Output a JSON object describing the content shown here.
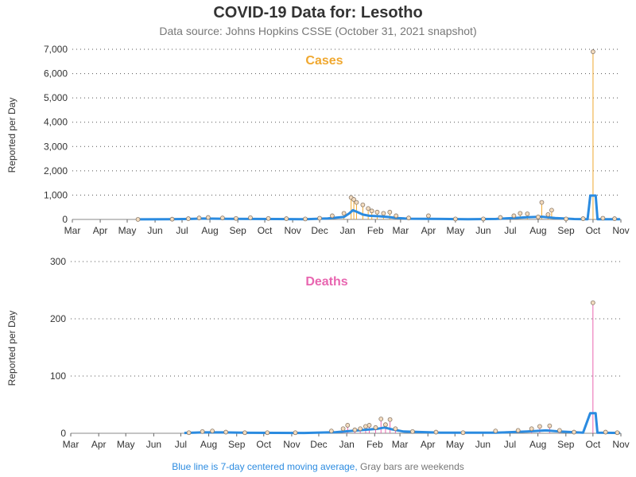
{
  "header": {
    "title": "COVID-19 Data for: Lesotho",
    "subtitle": "Data source: Johns Hopkins CSSE (October 31, 2021 snapshot)"
  },
  "footnote": {
    "moving_avg": "Blue line is 7-day centered moving average,",
    "weekends": "Gray bars are weekends"
  },
  "colors": {
    "moving_average": "#2b8be0",
    "cases": "#f0a830",
    "deaths": "#e866b0",
    "grid": "#555555"
  },
  "chart_data": [
    {
      "type": "line",
      "title": "Cases",
      "ylabel": "Reported per Day",
      "xlabel": "",
      "ylim": [
        0,
        7000
      ],
      "yticks": [
        "0",
        "1,000",
        "2,000",
        "3,000",
        "4,000",
        "5,000",
        "6,000",
        "7,000"
      ],
      "ytick_values": [
        0,
        1000,
        2000,
        3000,
        4000,
        5000,
        6000,
        7000
      ],
      "xlim": [
        "2020-03-01",
        "2021-11-01"
      ],
      "xticks": [
        "Mar",
        "Apr",
        "May",
        "Jun",
        "Jul",
        "Aug",
        "Sep",
        "Oct",
        "Nov",
        "Dec",
        "Jan",
        "Feb",
        "Mar",
        "Apr",
        "May",
        "Jun",
        "Jul",
        "Aug",
        "Sep",
        "Oct",
        "Nov"
      ],
      "grid": "horizontal dotted",
      "series": [
        {
          "name": "Reported per day",
          "color": "#f0a830",
          "points": [
            [
              "2020-05-13",
              1
            ],
            [
              "2020-06-20",
              10
            ],
            [
              "2020-07-08",
              30
            ],
            [
              "2020-07-20",
              60
            ],
            [
              "2020-07-30",
              80
            ],
            [
              "2020-08-15",
              60
            ],
            [
              "2020-08-30",
              40
            ],
            [
              "2020-09-15",
              70
            ],
            [
              "2020-10-05",
              40
            ],
            [
              "2020-10-25",
              30
            ],
            [
              "2020-11-15",
              20
            ],
            [
              "2020-12-01",
              50
            ],
            [
              "2020-12-15",
              150
            ],
            [
              "2020-12-28",
              250
            ],
            [
              "2021-01-05",
              900
            ],
            [
              "2021-01-08",
              820
            ],
            [
              "2021-01-11",
              700
            ],
            [
              "2021-01-18",
              600
            ],
            [
              "2021-01-24",
              450
            ],
            [
              "2021-01-28",
              350
            ],
            [
              "2021-02-03",
              300
            ],
            [
              "2021-02-10",
              250
            ],
            [
              "2021-02-17",
              300
            ],
            [
              "2021-02-24",
              150
            ],
            [
              "2021-03-10",
              60
            ],
            [
              "2021-04-01",
              150
            ],
            [
              "2021-05-01",
              20
            ],
            [
              "2021-06-01",
              20
            ],
            [
              "2021-06-20",
              80
            ],
            [
              "2021-07-05",
              150
            ],
            [
              "2021-07-12",
              250
            ],
            [
              "2021-07-20",
              230
            ],
            [
              "2021-08-01",
              100
            ],
            [
              "2021-08-05",
              700
            ],
            [
              "2021-08-12",
              200
            ],
            [
              "2021-08-16",
              380
            ],
            [
              "2021-09-01",
              20
            ],
            [
              "2021-09-20",
              30
            ],
            [
              "2021-10-01",
              6900
            ],
            [
              "2021-10-12",
              50
            ],
            [
              "2021-10-25",
              30
            ]
          ]
        },
        {
          "name": "7-day centered moving average",
          "color": "#2b8be0",
          "points": [
            [
              "2020-05-13",
              2
            ],
            [
              "2020-06-15",
              8
            ],
            [
              "2020-07-10",
              20
            ],
            [
              "2020-07-25",
              35
            ],
            [
              "2020-08-20",
              25
            ],
            [
              "2020-09-15",
              20
            ],
            [
              "2020-10-15",
              15
            ],
            [
              "2020-11-15",
              10
            ],
            [
              "2020-12-10",
              40
            ],
            [
              "2020-12-28",
              100
            ],
            [
              "2021-01-03",
              250
            ],
            [
              "2021-01-07",
              380
            ],
            [
              "2021-01-12",
              300
            ],
            [
              "2021-01-18",
              200
            ],
            [
              "2021-01-25",
              150
            ],
            [
              "2021-02-05",
              130
            ],
            [
              "2021-02-15",
              100
            ],
            [
              "2021-02-25",
              60
            ],
            [
              "2021-03-10",
              30
            ],
            [
              "2021-04-15",
              20
            ],
            [
              "2021-05-15",
              10
            ],
            [
              "2021-06-15",
              20
            ],
            [
              "2021-07-05",
              60
            ],
            [
              "2021-07-20",
              90
            ],
            [
              "2021-08-05",
              110
            ],
            [
              "2021-08-20",
              60
            ],
            [
              "2021-09-10",
              15
            ],
            [
              "2021-09-25",
              10
            ],
            [
              "2021-09-28",
              980
            ],
            [
              "2021-10-04",
              980
            ],
            [
              "2021-10-06",
              10
            ],
            [
              "2021-10-31",
              10
            ]
          ]
        }
      ]
    },
    {
      "type": "line",
      "title": "Deaths",
      "ylabel": "Reported per Day",
      "xlabel": "",
      "ylim": [
        0,
        300
      ],
      "yticks": [
        "0",
        "100",
        "200",
        "300"
      ],
      "ytick_values": [
        0,
        100,
        200,
        300
      ],
      "xlim": [
        "2020-03-01",
        "2021-11-01"
      ],
      "xticks": [
        "Mar",
        "Apr",
        "May",
        "Jun",
        "Jul",
        "Aug",
        "Sep",
        "Oct",
        "Nov",
        "Dec",
        "Jan",
        "Feb",
        "Mar",
        "Apr",
        "May",
        "Jun",
        "Jul",
        "Aug",
        "Sep",
        "Oct",
        "Nov"
      ],
      "grid": "horizontal dotted",
      "series": [
        {
          "name": "Reported per day",
          "color": "#e866b0",
          "points": [
            [
              "2020-07-10",
              1
            ],
            [
              "2020-07-25",
              3
            ],
            [
              "2020-08-05",
              4
            ],
            [
              "2020-08-20",
              2
            ],
            [
              "2020-09-10",
              1
            ],
            [
              "2020-10-05",
              1
            ],
            [
              "2020-11-05",
              1
            ],
            [
              "2020-12-15",
              4
            ],
            [
              "2020-12-28",
              8
            ],
            [
              "2021-01-02",
              14
            ],
            [
              "2021-01-10",
              6
            ],
            [
              "2021-01-16",
              8
            ],
            [
              "2021-01-22",
              12
            ],
            [
              "2021-01-26",
              14
            ],
            [
              "2021-02-02",
              10
            ],
            [
              "2021-02-08",
              25
            ],
            [
              "2021-02-13",
              15
            ],
            [
              "2021-02-18",
              24
            ],
            [
              "2021-02-24",
              8
            ],
            [
              "2021-03-15",
              3
            ],
            [
              "2021-04-10",
              2
            ],
            [
              "2021-05-10",
              1
            ],
            [
              "2021-06-15",
              4
            ],
            [
              "2021-07-10",
              5
            ],
            [
              "2021-07-25",
              8
            ],
            [
              "2021-08-03",
              12
            ],
            [
              "2021-08-14",
              13
            ],
            [
              "2021-08-25",
              5
            ],
            [
              "2021-09-10",
              2
            ],
            [
              "2021-10-01",
              228
            ],
            [
              "2021-10-15",
              2
            ],
            [
              "2021-10-28",
              1
            ]
          ]
        },
        {
          "name": "7-day centered moving average",
          "color": "#2b8be0",
          "points": [
            [
              "2020-07-05",
              0.5
            ],
            [
              "2020-07-25",
              1.5
            ],
            [
              "2020-08-15",
              1.5
            ],
            [
              "2020-09-15",
              0.8
            ],
            [
              "2020-11-15",
              0.5
            ],
            [
              "2020-12-20",
              2
            ],
            [
              "2021-01-05",
              4
            ],
            [
              "2021-01-20",
              6
            ],
            [
              "2021-02-05",
              8
            ],
            [
              "2021-02-12",
              10
            ],
            [
              "2021-02-20",
              7
            ],
            [
              "2021-03-05",
              3
            ],
            [
              "2021-04-15",
              1
            ],
            [
              "2021-06-15",
              1
            ],
            [
              "2021-07-20",
              3
            ],
            [
              "2021-08-10",
              5
            ],
            [
              "2021-08-25",
              3
            ],
            [
              "2021-09-20",
              1
            ],
            [
              "2021-09-28",
              35
            ],
            [
              "2021-10-04",
              35
            ],
            [
              "2021-10-06",
              1
            ],
            [
              "2021-10-31",
              0.5
            ]
          ]
        }
      ]
    }
  ]
}
